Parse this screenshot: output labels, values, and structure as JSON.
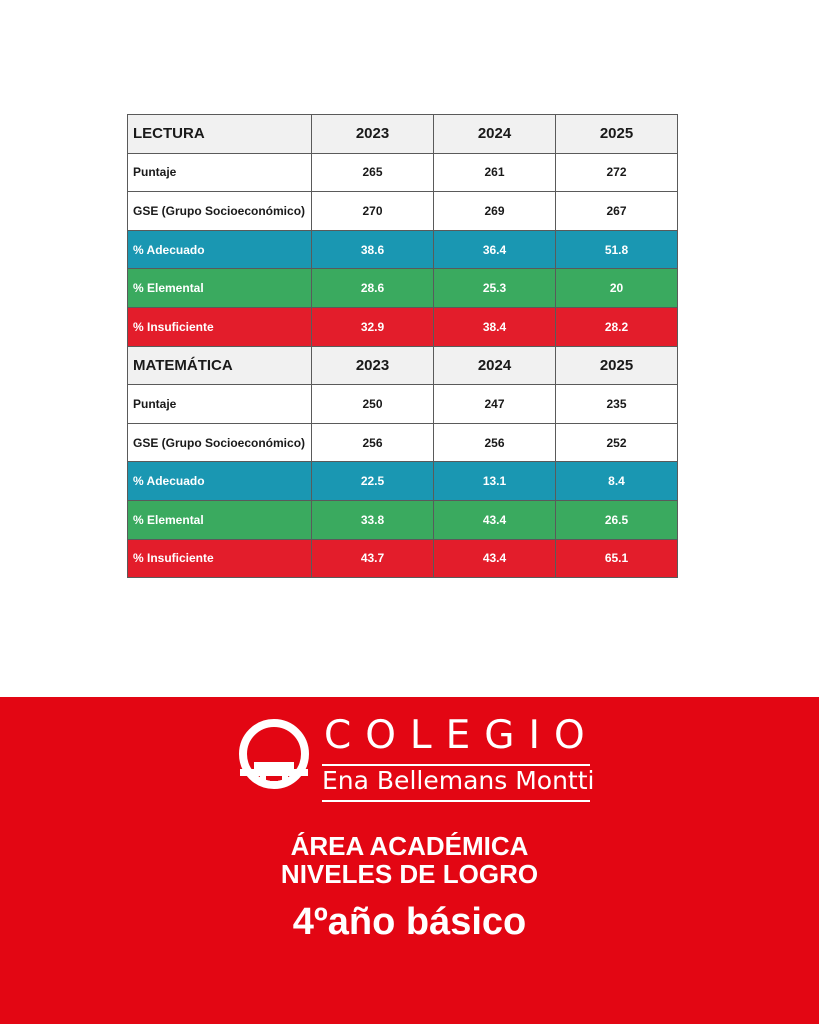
{
  "table": {
    "sections": [
      {
        "title": "LECTURA",
        "years": [
          "2023",
          "2024",
          "2025"
        ],
        "rows": [
          {
            "label": "Puntaje",
            "values": [
              "265",
              "261",
              "272"
            ]
          },
          {
            "label": "GSE (Grupo Socioeconómico)",
            "values": [
              "270",
              "269",
              "267"
            ]
          },
          {
            "label": "% Adecuado",
            "values": [
              "38.6",
              "36.4",
              "51.8"
            ]
          },
          {
            "label": "% Elemental",
            "values": [
              "28.6",
              "25.3",
              "20"
            ]
          },
          {
            "label": "% Insuficiente",
            "values": [
              "32.9",
              "38.4",
              "28.2"
            ]
          }
        ]
      },
      {
        "title": "MATEMÁTICA",
        "years": [
          "2023",
          "2024",
          "2025"
        ],
        "rows": [
          {
            "label": "Puntaje",
            "values": [
              "250",
              "247",
              "235"
            ]
          },
          {
            "label": "GSE (Grupo Socioeconómico)",
            "values": [
              "256",
              "256",
              "252"
            ]
          },
          {
            "label": "% Adecuado",
            "values": [
              "22.5",
              "13.1",
              "8.4"
            ]
          },
          {
            "label": "% Elemental",
            "values": [
              "33.8",
              "43.4",
              "26.5"
            ]
          },
          {
            "label": "% Insuficiente",
            "values": [
              "43.7",
              "43.4",
              "65.1"
            ]
          }
        ]
      }
    ]
  },
  "colors": {
    "adecuado": "#1a97b2",
    "elemental": "#3aaa5f",
    "insuficiente": "#e31d2b",
    "footer": "#e30613"
  },
  "footer": {
    "logo_line1": "COLEGIO",
    "logo_line2": "Ena Bellemans Montti",
    "heading_line1": "ÁREA ACADÉMICA",
    "heading_line2": "NIVELES DE LOGRO",
    "grade": "4ºaño básico"
  }
}
